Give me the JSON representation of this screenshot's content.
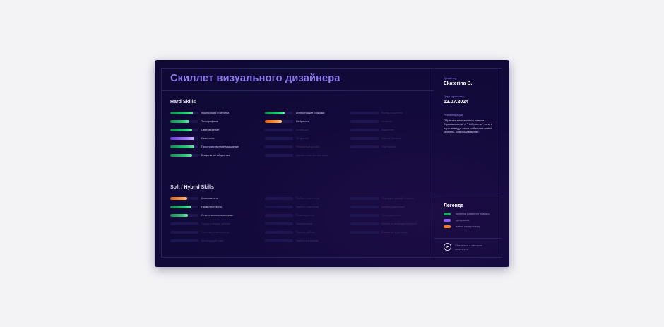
{
  "title": "Скиллет визуального дизайнера",
  "colors": {
    "level": "#1fa860",
    "superpower": "#8f5cf2",
    "to_improve": "#f07a1e"
  },
  "hard": {
    "heading": "Hard Skills",
    "columns": [
      [
        {
          "label": "Композиция и вёрстка",
          "level": 0.8,
          "type": "level"
        },
        {
          "label": "Типографика",
          "level": 0.68,
          "type": "level"
        },
        {
          "label": "Цветоведение",
          "level": 0.78,
          "type": "level"
        },
        {
          "label": "Светотень",
          "level": 0.85,
          "type": "superpower"
        },
        {
          "label": "Пространственное мышление",
          "level": 0.85,
          "type": "level"
        },
        {
          "label": "Визуальная Айдентика",
          "level": 0.78,
          "type": "level"
        }
      ],
      [
        {
          "label": "Иллюстрации и иконки",
          "level": 0.7,
          "type": "level"
        },
        {
          "label": "Нейросети",
          "level": 0.6,
          "type": "to_improve"
        },
        {
          "label": "Анимация",
          "level": 0,
          "type": "none"
        },
        {
          "label": "3D-дизайн",
          "level": 0,
          "type": "none"
        },
        {
          "label": "Рекламный дизайн",
          "level": 0,
          "type": "none"
        },
        {
          "label": "Динамичная презентация",
          "level": 0,
          "type": "none"
        }
      ],
      [
        {
          "label": "Бренд-стратегия",
          "level": 0,
          "type": "none"
        },
        {
          "label": "Нейминг",
          "level": 0,
          "type": "none"
        },
        {
          "label": "Маркетинг",
          "level": 0,
          "type": "none"
        },
        {
          "label": "Знание бизнеса",
          "level": 0,
          "type": "none"
        },
        {
          "label": "Портфолио",
          "level": 0,
          "type": "none"
        }
      ]
    ]
  },
  "soft": {
    "heading": "Soft / Hybrid Skills",
    "columns": [
      [
        {
          "label": "Креативность",
          "level": 0.6,
          "type": "to_improve"
        },
        {
          "label": "Насмотренность",
          "level": 0.75,
          "type": "level"
        },
        {
          "label": "Ответственность и права",
          "level": 0.62,
          "type": "level"
        },
        {
          "label": "Поиск и анализ данных",
          "level": 0,
          "type": "none"
        },
        {
          "label": "Системное мышление",
          "level": 0,
          "type": "none"
        },
        {
          "label": "Критический опыт",
          "level": 0,
          "type": "none"
        }
      ],
      [
        {
          "label": "Работа с клиентом",
          "level": 0,
          "type": "none"
        },
        {
          "label": "Работа с критикой",
          "level": 0,
          "type": "none"
        },
        {
          "label": "Самообучение",
          "level": 0,
          "type": "none"
        },
        {
          "label": "Презентация",
          "level": 0,
          "type": "none"
        },
        {
          "label": "Оценка работы",
          "level": 0,
          "type": "none"
        },
        {
          "label": "Работа в команде",
          "level": 0,
          "type": "none"
        }
      ],
      [
        {
          "label": "Передача знаний и опыта",
          "level": 0,
          "type": "none"
        },
        {
          "label": "Дизайн-мышление",
          "level": 0,
          "type": "none"
        },
        {
          "label": "Пунктуальность",
          "level": 0,
          "type": "none"
        },
        {
          "label": "Работа в неопределённости",
          "level": 0,
          "type": "none"
        },
        {
          "label": "Внимание к деталям",
          "level": 0,
          "type": "none"
        }
      ]
    ]
  },
  "side": {
    "designer_label": "Дизайнер:",
    "designer": "Ekaterina B.",
    "date_label": "Дата скрининга:",
    "date": "12.07.2024",
    "rec_label": "Рекомендации:",
    "rec": "Обратите внимание на навыки \"Креативность\" и \"Нейросети\" - они в паре выведут ваши работы на новый уровень, освободив время.",
    "legend_title": "Легенда",
    "legend": [
      {
        "label": "уровень развития навыка",
        "type": "level"
      },
      {
        "label": "суперсила",
        "type": "superpower"
      },
      {
        "label": "навык на прокачку",
        "type": "to_improve"
      }
    ],
    "contact": "Связаться с автором скиллсета",
    "contact_icon": "telegram-icon"
  }
}
